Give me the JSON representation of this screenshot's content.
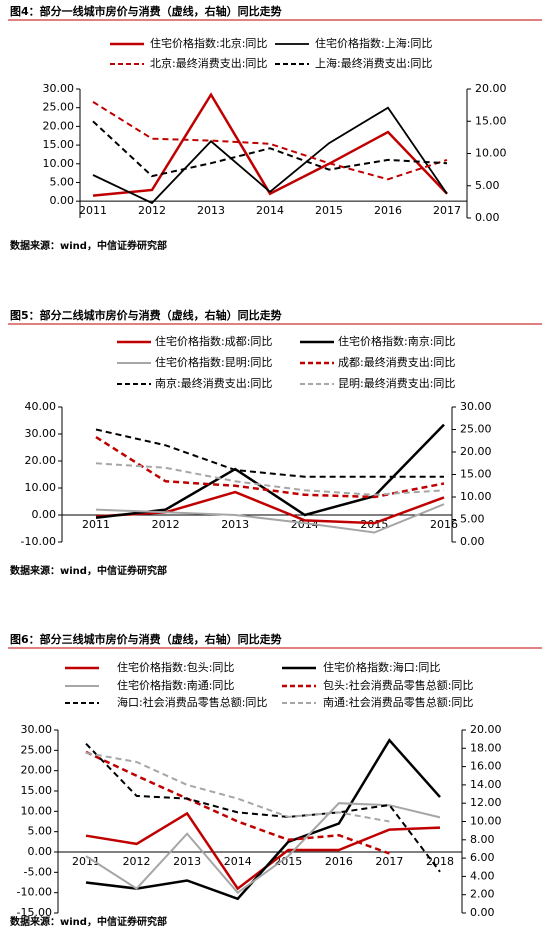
{
  "chart_data": [
    {
      "type": "line",
      "title": "图4：部分一线城市房价与消费（虚线，右轴）同比走势",
      "source": "数据来源：wind，中信证券研究部",
      "categories": [
        "2011",
        "2012",
        "2013",
        "2014",
        "2015",
        "2016",
        "2017"
      ],
      "ylim": [
        -4.5,
        30
      ],
      "yticks": [
        {
          "value": 0,
          "label": "0.00"
        },
        {
          "value": 5,
          "label": "5.00"
        },
        {
          "value": 10,
          "label": "10.00"
        },
        {
          "value": 15,
          "label": "15.00"
        },
        {
          "value": 20,
          "label": "20.00"
        },
        {
          "value": 25,
          "label": "25.00"
        },
        {
          "value": 30,
          "label": "30.00"
        }
      ],
      "y2lim": [
        0,
        20
      ],
      "y2ticks": [
        {
          "value": 0,
          "label": "0.00"
        },
        {
          "value": 5,
          "label": "5.00"
        },
        {
          "value": 10,
          "label": "10.00"
        },
        {
          "value": 15,
          "label": "15.00"
        },
        {
          "value": 20,
          "label": "20.00"
        }
      ],
      "series": [
        {
          "name": "住宅价格指数:北京:同比",
          "color": "#c00000",
          "width": 2.5,
          "dash": false,
          "values": [
            1.5,
            3,
            28.5,
            2,
            10,
            18.5,
            2
          ]
        },
        {
          "name": "住宅价格指数:上海:同比",
          "color": "#000000",
          "width": 1.8,
          "dash": false,
          "values": [
            7,
            -0.5,
            16,
            2.5,
            15.5,
            25,
            2
          ]
        },
        {
          "name": "北京:最终消费支出:同比",
          "color": "#c00000",
          "width": 2,
          "dash": true,
          "axis": "y2",
          "values": [
            18,
            12.3,
            12,
            11.5,
            8.5,
            6,
            9
          ]
        },
        {
          "name": "上海:最终消费支出:同比",
          "color": "#000000",
          "width": 2,
          "dash": true,
          "axis": "y2",
          "values": [
            15,
            6.5,
            8.5,
            10.8,
            7.5,
            9,
            8.5
          ]
        }
      ]
    },
    {
      "type": "line",
      "title": "图5：部分二线城市房价与消费（虚线，右轴）同比走势",
      "source": "数据来源：wind，中信证券研究部",
      "categories": [
        "2011",
        "2012",
        "2013",
        "2014",
        "2015",
        "2016"
      ],
      "ylim": [
        -10,
        40
      ],
      "yticks": [
        {
          "value": -10,
          "label": "-10.00"
        },
        {
          "value": 0,
          "label": "0.00"
        },
        {
          "value": 10,
          "label": "10.00"
        },
        {
          "value": 20,
          "label": "20.00"
        },
        {
          "value": 30,
          "label": "30.00"
        },
        {
          "value": 40,
          "label": "40.00"
        }
      ],
      "y2lim": [
        0,
        30
      ],
      "y2ticks": [
        {
          "value": 0,
          "label": "0.00"
        },
        {
          "value": 5,
          "label": "5.00"
        },
        {
          "value": 10,
          "label": "10.00"
        },
        {
          "value": 15,
          "label": "15.00"
        },
        {
          "value": 20,
          "label": "20.00"
        },
        {
          "value": 25,
          "label": "25.00"
        },
        {
          "value": 30,
          "label": "30.00"
        }
      ],
      "series": [
        {
          "name": "住宅价格指数:成都:同比",
          "color": "#c00000",
          "width": 2.5,
          "dash": false,
          "values": [
            -0.5,
            1,
            8.5,
            -2,
            -3,
            6.5
          ]
        },
        {
          "name": "住宅价格指数:南京:同比",
          "color": "#000000",
          "width": 2.5,
          "dash": false,
          "values": [
            -1,
            2,
            17,
            0,
            7,
            33.5
          ]
        },
        {
          "name": "住宅价格指数:昆明:同比",
          "color": "#a6a6a6",
          "width": 2,
          "dash": false,
          "values": [
            2,
            1,
            0,
            -3,
            -6.5,
            4
          ]
        },
        {
          "name": "成都:最终消费支出:同比",
          "color": "#c00000",
          "width": 2.5,
          "dash": true,
          "axis": "y2",
          "values": [
            23.3,
            13.5,
            12.5,
            10.5,
            10,
            13
          ]
        },
        {
          "name": "南京:最终消费支出:同比",
          "color": "#000000",
          "width": 2,
          "dash": true,
          "axis": "y2",
          "values": [
            25,
            21.5,
            16,
            14.5,
            14.5,
            14.5
          ]
        },
        {
          "name": "昆明:最终消费支出:同比",
          "color": "#a6a6a6",
          "width": 2,
          "dash": true,
          "axis": "y2",
          "values": [
            17.5,
            16.5,
            13.5,
            11.5,
            10.5,
            11.5
          ]
        }
      ]
    },
    {
      "type": "line",
      "title": "图6：部分三线城市房价与消费（虚线，右轴）同比走势",
      "source": "数据来源：wind，中信证券研究部",
      "categories": [
        "2011",
        "2012",
        "2013",
        "2014",
        "2015",
        "2016",
        "2017",
        "2018"
      ],
      "ylim": [
        -15,
        30
      ],
      "yticks": [
        {
          "value": -15,
          "label": "-15.00"
        },
        {
          "value": -10,
          "label": "-10.00"
        },
        {
          "value": -5,
          "label": "-5.00"
        },
        {
          "value": 0,
          "label": "0.00"
        },
        {
          "value": 5,
          "label": "5.00"
        },
        {
          "value": 10,
          "label": "10.00"
        },
        {
          "value": 15,
          "label": "15.00"
        },
        {
          "value": 20,
          "label": "20.00"
        },
        {
          "value": 25,
          "label": "25.00"
        },
        {
          "value": 30,
          "label": "30.00"
        }
      ],
      "y2lim": [
        0,
        20
      ],
      "y2ticks": [
        {
          "value": 0,
          "label": "0.00"
        },
        {
          "value": 2,
          "label": "2.00"
        },
        {
          "value": 4,
          "label": "4.00"
        },
        {
          "value": 6,
          "label": "6.00"
        },
        {
          "value": 8,
          "label": "8.00"
        },
        {
          "value": 10,
          "label": "10.00"
        },
        {
          "value": 12,
          "label": "12.00"
        },
        {
          "value": 14,
          "label": "14.00"
        },
        {
          "value": 16,
          "label": "16.00"
        },
        {
          "value": 18,
          "label": "18.00"
        },
        {
          "value": 20,
          "label": "20.00"
        }
      ],
      "series": [
        {
          "name": "住宅价格指数:包头:同比",
          "color": "#c00000",
          "width": 2.5,
          "dash": false,
          "values": [
            4,
            2,
            9.5,
            -9,
            0.5,
            0.5,
            5.5,
            6
          ]
        },
        {
          "name": "住宅价格指数:海口:同比",
          "color": "#000000",
          "width": 2.5,
          "dash": false,
          "values": [
            -7.5,
            -9,
            -7,
            -11.5,
            2.5,
            7,
            27.5,
            13.5
          ]
        },
        {
          "name": "住宅价格指数:南通:同比",
          "color": "#a6a6a6",
          "width": 2,
          "dash": false,
          "values": [
            -1,
            -9,
            4.5,
            -10,
            -1,
            12,
            11.5,
            8.5
          ]
        },
        {
          "name": "包头:社会消费品零售总额:同比",
          "color": "#c00000",
          "width": 2.5,
          "dash": true,
          "axis": "y2",
          "values": [
            17.6,
            15,
            12.5,
            10,
            8,
            8.5,
            6.5,
            null
          ]
        },
        {
          "name": "海口:社会消费品零售总额:同比",
          "color": "#000000",
          "width": 2,
          "dash": true,
          "axis": "y2",
          "values": [
            18.5,
            12.8,
            12.5,
            11,
            10.5,
            11,
            11.8,
            4.5
          ]
        },
        {
          "name": "南通:社会消费品零售总额:同比",
          "color": "#a6a6a6",
          "width": 2,
          "dash": true,
          "axis": "y2",
          "values": [
            17.5,
            16.5,
            14,
            12.5,
            10.5,
            11,
            10,
            null
          ]
        }
      ]
    }
  ]
}
